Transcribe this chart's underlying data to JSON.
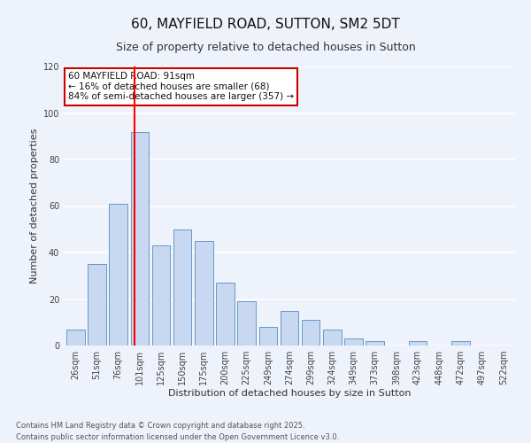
{
  "title": "60, MAYFIELD ROAD, SUTTON, SM2 5DT",
  "subtitle": "Size of property relative to detached houses in Sutton",
  "xlabel": "Distribution of detached houses by size in Sutton",
  "ylabel": "Number of detached properties",
  "bar_labels": [
    "26sqm",
    "51sqm",
    "76sqm",
    "101sqm",
    "125sqm",
    "150sqm",
    "175sqm",
    "200sqm",
    "225sqm",
    "249sqm",
    "274sqm",
    "299sqm",
    "324sqm",
    "349sqm",
    "373sqm",
    "398sqm",
    "423sqm",
    "448sqm",
    "472sqm",
    "497sqm",
    "522sqm"
  ],
  "bar_values": [
    7,
    35,
    61,
    92,
    43,
    50,
    45,
    27,
    19,
    8,
    15,
    11,
    7,
    3,
    2,
    0,
    2,
    0,
    2,
    0,
    0
  ],
  "bar_color": "#c8d8f0",
  "bar_edge_color": "#6699cc",
  "red_line_x": 2.75,
  "annotation_text": "60 MAYFIELD ROAD: 91sqm\n← 16% of detached houses are smaller (68)\n84% of semi-detached houses are larger (357) →",
  "annotation_box_color": "#ffffff",
  "annotation_box_edge_color": "#cc0000",
  "ylim": [
    0,
    120
  ],
  "yticks": [
    0,
    20,
    40,
    60,
    80,
    100,
    120
  ],
  "footnote_line1": "Contains HM Land Registry data © Crown copyright and database right 2025.",
  "footnote_line2": "Contains public sector information licensed under the Open Government Licence v3.0.",
  "background_color": "#eef2fa",
  "grid_color": "#ffffff",
  "title_fontsize": 11,
  "subtitle_fontsize": 9,
  "axis_label_fontsize": 8,
  "tick_fontsize": 7,
  "annotation_fontsize": 7.5,
  "footnote_fontsize": 6
}
